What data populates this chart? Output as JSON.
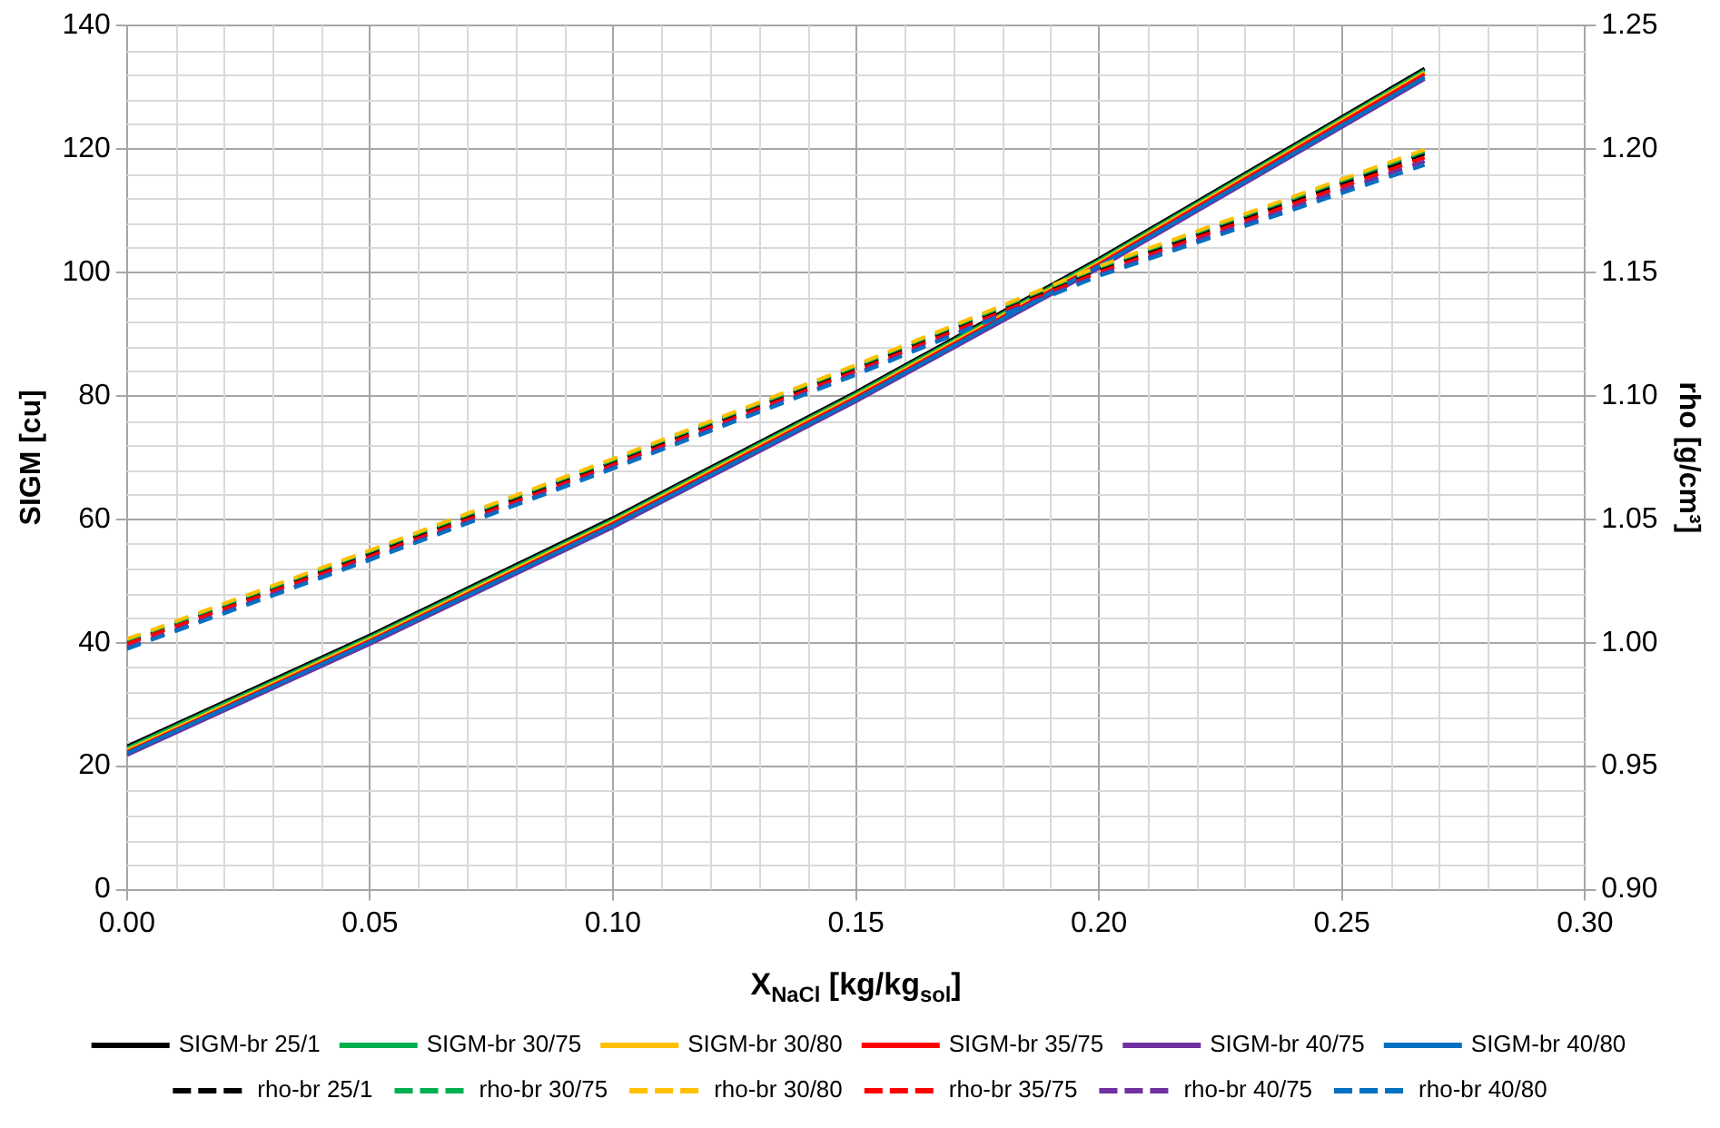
{
  "chart_data": {
    "type": "line",
    "xlabel": "X$_{NaCl}$ [kg/kg$_{sol}$]",
    "ylabel": "SIGM [cu]",
    "y2label": "rho [g/cm³]",
    "x": [
      0,
      0.05,
      0.1,
      0.15,
      0.2,
      0.267
    ],
    "xlim": [
      0,
      0.3
    ],
    "xticks": [
      {
        "value": 0,
        "label": "0.00"
      },
      {
        "value": 0.05,
        "label": "0.05"
      },
      {
        "value": 0.1,
        "label": "0.10"
      },
      {
        "value": 0.15,
        "label": "0.15"
      },
      {
        "value": 0.2,
        "label": "0.20"
      },
      {
        "value": 0.25,
        "label": "0.25"
      },
      {
        "value": 0.3,
        "label": "0.30"
      }
    ],
    "ylim": [
      0,
      140
    ],
    "yticks": [
      0,
      20,
      40,
      60,
      80,
      100,
      120,
      140
    ],
    "y2lim": [
      0.9,
      1.25
    ],
    "y2ticks": [
      {
        "value": 0.9,
        "label": "0.90"
      },
      {
        "value": 0.95,
        "label": "0.95"
      },
      {
        "value": 1,
        "label": "1.00"
      },
      {
        "value": 1.05,
        "label": "1.05"
      },
      {
        "value": 1.1,
        "label": "1.10"
      },
      {
        "value": 1.15,
        "label": "1.15"
      },
      {
        "value": 1.2,
        "label": "1.20"
      },
      {
        "value": 1.25,
        "label": "1.25"
      }
    ],
    "grid": true,
    "legend": "bottom",
    "marker": "none",
    "series": [
      {
        "name": "SIGM-br 25/1",
        "color": "#000000",
        "line_style": "solid",
        "values": [
          23.2,
          41.2,
          60.2,
          80.6,
          102.2,
          133
        ]
      },
      {
        "name": "SIGM-br 30/75",
        "color": "#00b050",
        "line_style": "solid",
        "values": [
          22.9,
          40.9,
          59.9,
          80.3,
          101.9,
          132.7
        ]
      },
      {
        "name": "SIGM-br 30/80",
        "color": "#ffc000",
        "line_style": "solid",
        "values": [
          22.6,
          40.6,
          59.6,
          80,
          101.6,
          132.4
        ]
      },
      {
        "name": "SIGM-br 35/75",
        "color": "#ff0000",
        "line_style": "solid",
        "values": [
          22.3,
          40.3,
          59.3,
          79.7,
          101.3,
          132.1
        ]
      },
      {
        "name": "SIGM-br 40/75",
        "color": "#7030a0",
        "line_style": "solid",
        "values": [
          21.8,
          39.8,
          58.7,
          79.1,
          100.7,
          131.3
        ]
      },
      {
        "name": "SIGM-br 40/80",
        "color": "#0070c0",
        "line_style": "solid",
        "values": [
          22.1,
          40.1,
          59,
          79.4,
          101,
          131.6
        ]
      },
      {
        "name": "rho-br 25/1",
        "color": "#000000",
        "line_style": "dashed",
        "axis": "y2",
        "values": [
          1,
          1.036,
          1.073,
          1.111,
          1.151,
          1.198
        ]
      },
      {
        "name": "rho-br 30/75",
        "color": "#00b050",
        "line_style": "dashed",
        "axis": "y2",
        "values": [
          1.001,
          1.037,
          1.074,
          1.112,
          1.152,
          1.199
        ]
      },
      {
        "name": "rho-br 30/80",
        "color": "#ffc000",
        "line_style": "dashed",
        "axis": "y2",
        "values": [
          1.0015,
          1.0375,
          1.0745,
          1.1125,
          1.1525,
          1.1997
        ]
      },
      {
        "name": "rho-br 35/75",
        "color": "#ff0000",
        "line_style": "dashed",
        "axis": "y2",
        "values": [
          0.9995,
          1.035,
          1.072,
          1.11,
          1.15,
          1.1965
        ]
      },
      {
        "name": "rho-br 40/75",
        "color": "#7030a0",
        "line_style": "dashed",
        "axis": "y2",
        "values": [
          0.998,
          1.034,
          1.071,
          1.109,
          1.149,
          1.195
        ]
      },
      {
        "name": "rho-br 40/80",
        "color": "#0070c0",
        "line_style": "dashed",
        "axis": "y2",
        "values": [
          0.9975,
          1.0335,
          1.0705,
          1.1085,
          1.1485,
          1.1935
        ]
      }
    ]
  }
}
